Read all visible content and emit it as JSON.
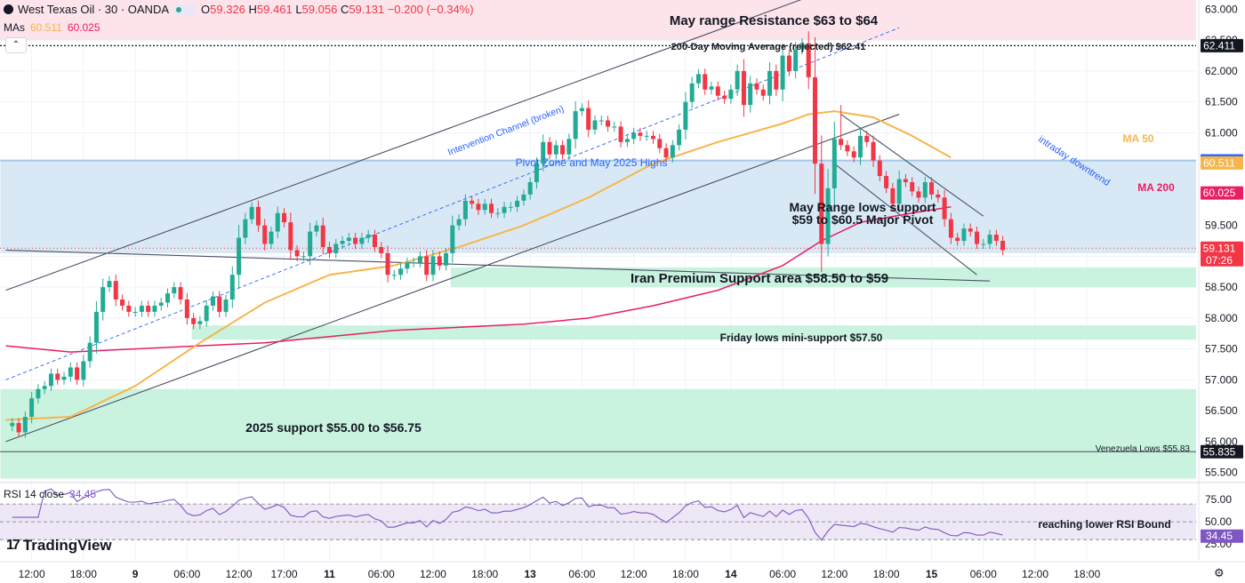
{
  "header": {
    "symbol": "West Texas Oil · 30 · OANDA",
    "open": "59.326",
    "high": "59.461",
    "low": "59.056",
    "close": "59.131",
    "change": "−0.200 (−0.34%)",
    "o_lbl": "O",
    "h_lbl": "H",
    "l_lbl": "L",
    "c_lbl": "C"
  },
  "mas_label": {
    "title": "MAs",
    "v1": "60.511",
    "v2": "60.025"
  },
  "rsi_label": {
    "title": "RSI 14 close",
    "value": "34.45"
  },
  "branding": {
    "name": "TradingView",
    "mark": "17"
  },
  "icons": {
    "settings": "gear-icon",
    "collapse": "chevron-up-icon",
    "logo": "tradingview-logo"
  },
  "chart_data": {
    "type": "candlestick",
    "price_axis": {
      "ticks": [
        55.5,
        56.0,
        56.5,
        57.0,
        57.5,
        58.0,
        58.5,
        59.0,
        59.5,
        60.0,
        60.5,
        61.0,
        61.5,
        62.0,
        62.5,
        63.0
      ],
      "tick_labels": [
        "55.500",
        "56.000",
        "56.500",
        "57.000",
        "57.500",
        "58.000",
        "58.500",
        "59.000",
        "59.500",
        "60.000",
        "60.500",
        "61.000",
        "61.500",
        "62.000",
        "62.500",
        "63.000"
      ],
      "range": [
        55.35,
        63.15
      ]
    },
    "time_axis": {
      "labels": [
        "12:00",
        "18:00",
        "9",
        "06:00",
        "12:00",
        "17:00",
        "11",
        "06:00",
        "12:00",
        "18:00",
        "13",
        "06:00",
        "12:00",
        "18:00",
        "14",
        "06:00",
        "12:00",
        "18:00",
        "15",
        "06:00",
        "12:00",
        "18:00"
      ],
      "bold": [
        false,
        false,
        true,
        false,
        false,
        false,
        true,
        false,
        false,
        false,
        true,
        false,
        false,
        false,
        true,
        false,
        false,
        false,
        true,
        false,
        false,
        false
      ],
      "bar_index": [
        4,
        12,
        20,
        28,
        36,
        43,
        50,
        58,
        66,
        74,
        81,
        89,
        97,
        105,
        112,
        120,
        128,
        136,
        143,
        151,
        159,
        167
      ]
    },
    "price_path": [
      56.25,
      56.3,
      56.15,
      56.4,
      56.7,
      56.85,
      56.9,
      57.1,
      57.0,
      57.05,
      57.2,
      57.0,
      57.3,
      57.6,
      58.1,
      58.5,
      58.6,
      58.3,
      58.2,
      58.1,
      58.1,
      58.2,
      58.1,
      58.2,
      58.25,
      58.4,
      58.5,
      58.3,
      58.0,
      57.9,
      57.95,
      58.2,
      58.35,
      58.1,
      58.3,
      58.7,
      59.3,
      59.6,
      59.8,
      59.5,
      59.2,
      59.4,
      59.7,
      59.55,
      59.1,
      59.0,
      59.0,
      59.4,
      59.5,
      59.15,
      59.05,
      59.2,
      59.25,
      59.3,
      59.2,
      59.3,
      59.35,
      59.15,
      59.05,
      58.7,
      58.7,
      58.8,
      58.9,
      58.9,
      59.0,
      58.7,
      59.0,
      58.85,
      59.05,
      59.5,
      59.6,
      59.9,
      59.85,
      59.75,
      59.85,
      59.7,
      59.7,
      59.8,
      59.8,
      59.9,
      60.0,
      60.2,
      60.5,
      60.85,
      60.65,
      60.8,
      60.65,
      60.9,
      61.35,
      61.4,
      61.05,
      61.2,
      61.2,
      61.1,
      61.1,
      60.85,
      60.9,
      61.0,
      60.95,
      60.95,
      60.9,
      60.75,
      60.6,
      60.8,
      61.05,
      61.5,
      61.8,
      61.95,
      61.7,
      61.75,
      61.6,
      61.55,
      61.7,
      62.0,
      61.45,
      61.8,
      61.7,
      61.6,
      62.0,
      61.7,
      62.25,
      62.0,
      62.35,
      62.45,
      61.9,
      60.5,
      59.2,
      60.1,
      60.9,
      60.8,
      60.7,
      60.6,
      60.95,
      60.85,
      60.55,
      60.3,
      60.1,
      59.85,
      60.25,
      60.2,
      60.05,
      59.95,
      60.2,
      60.0,
      59.95,
      59.6,
      59.3,
      59.25,
      59.45,
      59.4,
      59.2,
      59.2,
      59.35,
      59.25,
      59.1
    ],
    "ma50_knots": [
      [
        0,
        56.35
      ],
      [
        10,
        56.4
      ],
      [
        20,
        56.9
      ],
      [
        30,
        57.6
      ],
      [
        40,
        58.25
      ],
      [
        50,
        58.7
      ],
      [
        60,
        58.85
      ],
      [
        70,
        59.15
      ],
      [
        80,
        59.5
      ],
      [
        90,
        59.95
      ],
      [
        100,
        60.5
      ],
      [
        110,
        60.85
      ],
      [
        120,
        61.15
      ],
      [
        124,
        61.3
      ],
      [
        128,
        61.35
      ],
      [
        134,
        61.25
      ],
      [
        140,
        60.95
      ],
      [
        146,
        60.6
      ]
    ],
    "ma200_knots": [
      [
        0,
        57.55
      ],
      [
        10,
        57.45
      ],
      [
        20,
        57.5
      ],
      [
        30,
        57.55
      ],
      [
        40,
        57.6
      ],
      [
        50,
        57.7
      ],
      [
        60,
        57.8
      ],
      [
        70,
        57.85
      ],
      [
        80,
        57.9
      ],
      [
        90,
        58.0
      ],
      [
        100,
        58.2
      ],
      [
        110,
        58.45
      ],
      [
        120,
        58.85
      ],
      [
        126,
        59.25
      ],
      [
        132,
        59.55
      ],
      [
        140,
        59.7
      ],
      [
        146,
        59.8
      ]
    ],
    "zones": [
      {
        "label": "May range Resistance $63 to $64",
        "low": 62.5,
        "high": 63.2,
        "start": 0,
        "color": "#fde3ea"
      },
      {
        "label": "Pivot Zone and May 2025 Highs",
        "low": 59.05,
        "high": 60.55,
        "start": 0,
        "color": "#d8e9f5"
      },
      {
        "label": "Iran Premium Support area $58.50 to $59",
        "low": 58.5,
        "high": 58.82,
        "start": 69,
        "color": "#c9f2df"
      },
      {
        "label": "Friday lows mini-support $57.50",
        "low": 57.65,
        "high": 57.88,
        "start": 29,
        "color": "#c9f2df"
      },
      {
        "label": "2025 support $55.00 to $56.75",
        "low": 55.4,
        "high": 56.85,
        "start": 0,
        "color": "#c9f2df"
      }
    ],
    "horizontal_lines": [
      {
        "label": "200-Day Moving Average (rejected) $62.41",
        "price": 62.411,
        "style": "dotted"
      },
      {
        "label": "Venezuela Lows $55.83",
        "price": 55.835,
        "style": "solid"
      }
    ],
    "trendlines": [
      {
        "label": "Intervention Channel (broken)",
        "p1": [
          0,
          57.0
        ],
        "p2": [
          138,
          62.7
        ],
        "style": "dashed"
      },
      {
        "label": "",
        "p1": [
          0,
          58.45
        ],
        "p2": [
          124,
          63.2
        ],
        "style": "solid"
      },
      {
        "label": "",
        "p1": [
          0,
          56.0
        ],
        "p2": [
          138,
          61.3
        ],
        "style": "solid"
      },
      {
        "label": "",
        "p1": [
          0,
          59.1
        ],
        "p2": [
          152,
          58.6
        ],
        "style": "solid"
      },
      {
        "label": "intraday downtrend",
        "p1": [
          129,
          61.3
        ],
        "p2": [
          151,
          59.65
        ],
        "style": "solid"
      },
      {
        "label": "",
        "p1": [
          128,
          60.5
        ],
        "p2": [
          150,
          58.7
        ],
        "style": "solid"
      }
    ],
    "annotations": [
      {
        "text": "MA 50",
        "color": "#f7b54b"
      },
      {
        "text": "MA 200",
        "color": "#e91e63"
      },
      {
        "text": "May Range lows support",
        "line2": "$59 to $60.5 Major Pivot"
      }
    ],
    "axis_tags": [
      {
        "text": "62.411",
        "price": 62.411,
        "bg": "#131722"
      },
      {
        "text": "60.546",
        "price": 60.546,
        "bg": "#2962ff"
      },
      {
        "text": "60.511",
        "price": 60.511,
        "bg": "#f7b54b"
      },
      {
        "text": "60.025",
        "price": 60.025,
        "bg": "#e91e63"
      },
      {
        "text": "59.131",
        "sub": "07:26",
        "price": 59.131,
        "bg": "#f23645"
      },
      {
        "text": "55.835",
        "price": 55.835,
        "bg": "#131722"
      }
    ],
    "rsi": {
      "period": 14,
      "value": 34.45,
      "ticks": [
        75.0,
        50.0,
        25.0
      ],
      "tick_labels": [
        "75.00",
        "50.00",
        "25.00"
      ],
      "bounds": [
        70,
        30
      ],
      "note": "reaching lower RSI Bound"
    },
    "colors": {
      "up": "#22ab94",
      "down": "#f23645",
      "ma50": "#f7b54b",
      "ma200": "#e91e63",
      "rsi": "#7e57c2"
    }
  }
}
